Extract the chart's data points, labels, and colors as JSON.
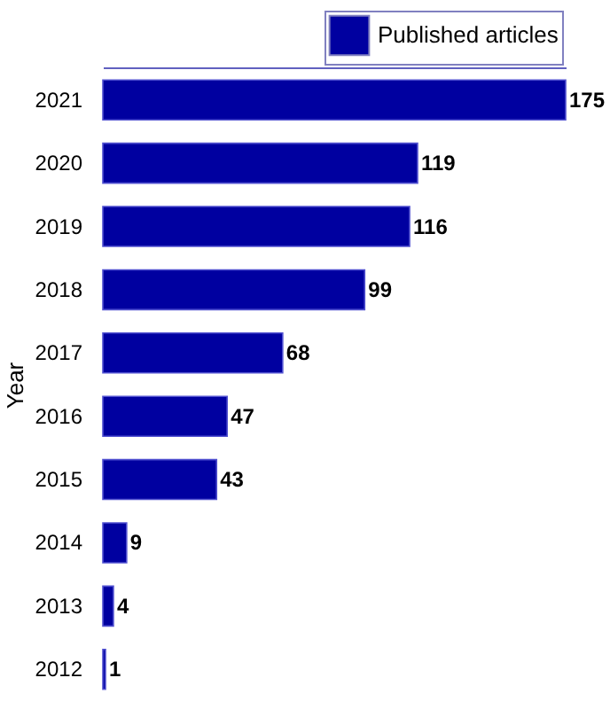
{
  "chart_data": {
    "type": "bar",
    "orientation": "horizontal",
    "ylabel": "Year",
    "categories": [
      "2021",
      "2020",
      "2019",
      "2018",
      "2017",
      "2016",
      "2015",
      "2014",
      "2013",
      "2012"
    ],
    "series": [
      {
        "name": "Published articles",
        "color": "#0000a0",
        "values": [
          175,
          119,
          116,
          99,
          68,
          47,
          43,
          9,
          4,
          1
        ]
      }
    ],
    "tick_labels": "y",
    "data_labels": true,
    "legend": "top right",
    "grid": false
  }
}
